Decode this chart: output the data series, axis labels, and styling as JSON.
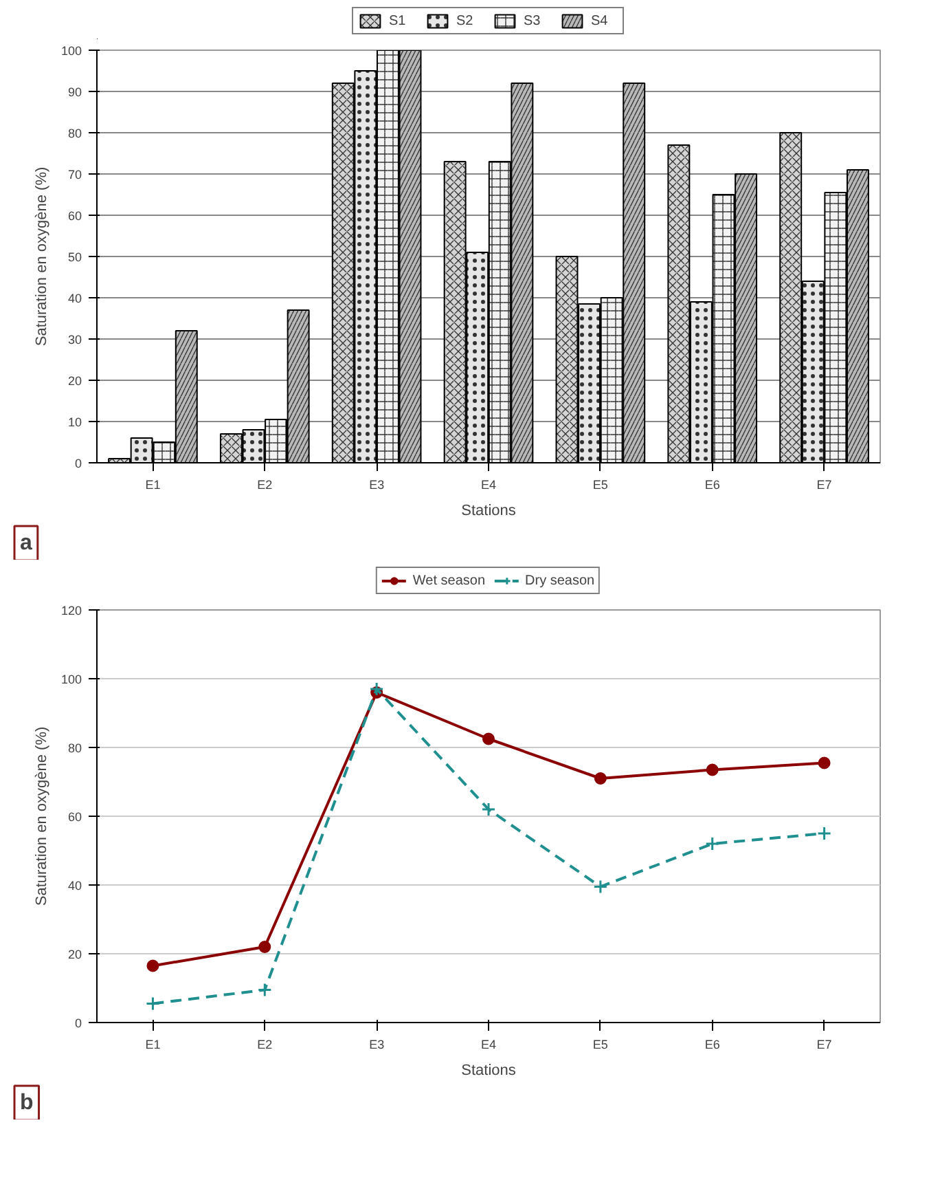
{
  "chart_data": [
    {
      "type": "bar",
      "xlabel": "Stations",
      "ylabel": "Saturation en oxygène (%)",
      "categories": [
        "E1",
        "E2",
        "E3",
        "E4",
        "E5",
        "E6",
        "E7"
      ],
      "ylim": [
        0,
        100
      ],
      "yticks": [
        0,
        10,
        20,
        30,
        40,
        50,
        60,
        70,
        80,
        90,
        100
      ],
      "grid": "y",
      "legend": "top",
      "annotations": [
        "a"
      ],
      "series": [
        {
          "name": "S1",
          "color": "#d4d4d4",
          "values": [
            1,
            7,
            92,
            73,
            50,
            77,
            80
          ]
        },
        {
          "name": "S2",
          "color": "#e6e6e6",
          "values": [
            6,
            8,
            95,
            51,
            38.5,
            39,
            44
          ]
        },
        {
          "name": "S3",
          "color": "#f2f2f2",
          "values": [
            5,
            10.5,
            100,
            73,
            40,
            65,
            65.5
          ]
        },
        {
          "name": "S4",
          "color": "#b8b8b8",
          "values": [
            32,
            37,
            100,
            92,
            92,
            70,
            71
          ]
        }
      ]
    },
    {
      "type": "line",
      "xlabel": "Stations",
      "ylabel": "Saturation en oxygène (%)",
      "categories": [
        "E1",
        "E2",
        "E3",
        "E4",
        "E5",
        "E6",
        "E7"
      ],
      "ylim": [
        0,
        120
      ],
      "yticks": [
        0,
        20,
        40,
        60,
        80,
        100,
        120
      ],
      "grid": "y",
      "legend": "top",
      "annotations": [
        "b"
      ],
      "series": [
        {
          "name": "Wet season",
          "color": "#8b0000",
          "marker": "circle",
          "line_style": "solid",
          "values": [
            16.5,
            22,
            96,
            82.5,
            71,
            73.5,
            75.5
          ]
        },
        {
          "name": "Dry season",
          "color": "#1f8f8f",
          "marker": "cross",
          "line_style": "dashed",
          "values": [
            5.5,
            9.5,
            97,
            62,
            39.5,
            52,
            55
          ]
        }
      ]
    }
  ]
}
